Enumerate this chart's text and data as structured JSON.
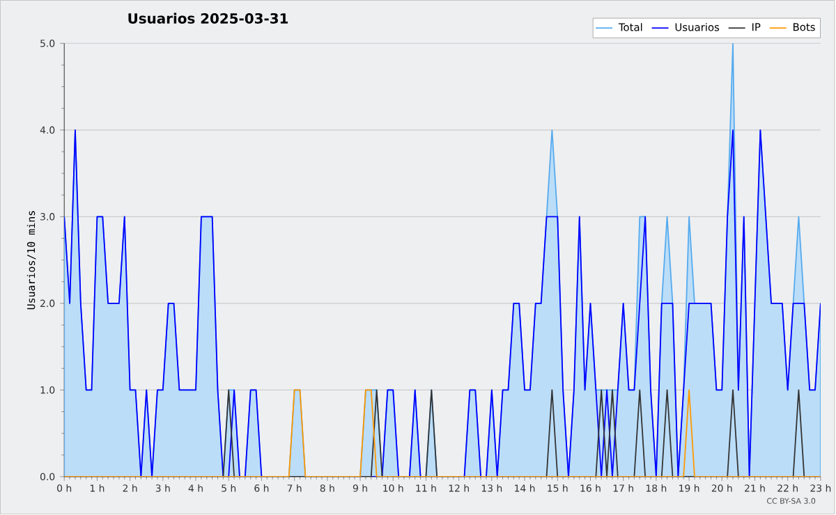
{
  "chart_data": {
    "type": "line",
    "title": "Usuarios  2025-03-31",
    "ylabel": "Usuarios/10 mins",
    "annotations": [
      "CC BY-SA 3.0"
    ],
    "x": [
      0,
      0.167,
      0.333,
      0.5,
      0.667,
      0.833,
      1,
      1.167,
      1.333,
      1.5,
      1.667,
      1.833,
      2,
      2.167,
      2.333,
      2.5,
      2.667,
      2.833,
      3,
      3.167,
      3.333,
      3.5,
      3.667,
      3.833,
      4,
      4.167,
      4.333,
      4.5,
      4.667,
      4.833,
      5,
      5.167,
      5.333,
      5.5,
      5.667,
      5.833,
      6,
      6.167,
      6.333,
      6.5,
      6.667,
      6.833,
      7,
      7.167,
      7.333,
      7.5,
      7.667,
      7.833,
      8,
      8.167,
      8.333,
      8.5,
      8.667,
      8.833,
      9,
      9.167,
      9.333,
      9.5,
      9.667,
      9.833,
      10,
      10.167,
      10.333,
      10.5,
      10.667,
      10.833,
      11,
      11.167,
      11.333,
      11.5,
      11.667,
      11.833,
      12,
      12.167,
      12.333,
      12.5,
      12.667,
      12.833,
      13,
      13.167,
      13.333,
      13.5,
      13.667,
      13.833,
      14,
      14.167,
      14.333,
      14.5,
      14.667,
      14.833,
      15,
      15.167,
      15.333,
      15.5,
      15.667,
      15.833,
      16,
      16.167,
      16.333,
      16.5,
      16.667,
      16.833,
      17,
      17.167,
      17.333,
      17.5,
      17.667,
      17.833,
      18,
      18.167,
      18.333,
      18.5,
      18.667,
      18.833,
      19,
      19.167,
      19.333,
      19.5,
      19.667,
      19.833,
      20,
      20.167,
      20.333,
      20.5,
      20.667,
      20.833,
      21,
      21.167,
      21.333,
      21.5,
      21.667,
      21.833,
      22,
      22.167,
      22.333,
      22.5,
      22.667,
      22.833,
      23
    ],
    "series": [
      {
        "name": "Total",
        "type": "area",
        "color": "#55aaee",
        "values": [
          3,
          2,
          4,
          2,
          1,
          1,
          3,
          3,
          2,
          2,
          2,
          3,
          1,
          1,
          0,
          1,
          0,
          1,
          1,
          2,
          2,
          1,
          1,
          1,
          1,
          3,
          3,
          3,
          1,
          0,
          1,
          1,
          0,
          0,
          1,
          1,
          0,
          0,
          0,
          0,
          0,
          0,
          1,
          1,
          0,
          0,
          0,
          0,
          0,
          0,
          0,
          0,
          0,
          0,
          0,
          1,
          1,
          1,
          0,
          1,
          1,
          0,
          0,
          0,
          1,
          0,
          0,
          1,
          0,
          0,
          0,
          0,
          0,
          0,
          1,
          1,
          0,
          0,
          1,
          0,
          1,
          1,
          2,
          2,
          1,
          1,
          2,
          2,
          3,
          4,
          3,
          1,
          0,
          1,
          3,
          1,
          2,
          1,
          1,
          1,
          1,
          1,
          2,
          1,
          1,
          3,
          3,
          1,
          0,
          2,
          3,
          2,
          0,
          1,
          3,
          2,
          2,
          2,
          2,
          1,
          1,
          3,
          5,
          1,
          3,
          0,
          2,
          4,
          3,
          2,
          2,
          2,
          1,
          2,
          3,
          2,
          1,
          1,
          2
        ]
      },
      {
        "name": "Usuarios",
        "color": "#0000ff",
        "values": [
          3,
          2,
          4,
          2,
          1,
          1,
          3,
          3,
          2,
          2,
          2,
          3,
          1,
          1,
          0,
          1,
          0,
          1,
          1,
          2,
          2,
          1,
          1,
          1,
          1,
          3,
          3,
          3,
          1,
          0,
          0,
          1,
          0,
          0,
          1,
          1,
          0,
          0,
          0,
          0,
          0,
          0,
          0,
          0,
          0,
          0,
          0,
          0,
          0,
          0,
          0,
          0,
          0,
          0,
          0,
          0,
          0,
          0,
          0,
          1,
          1,
          0,
          0,
          0,
          1,
          0,
          0,
          0,
          0,
          0,
          0,
          0,
          0,
          0,
          1,
          1,
          0,
          0,
          1,
          0,
          1,
          1,
          2,
          2,
          1,
          1,
          2,
          2,
          3,
          3,
          3,
          1,
          0,
          1,
          3,
          1,
          2,
          1,
          0,
          1,
          0,
          1,
          2,
          1,
          1,
          2,
          3,
          1,
          0,
          2,
          2,
          2,
          0,
          1,
          2,
          2,
          2,
          2,
          2,
          1,
          1,
          3,
          4,
          1,
          3,
          0,
          2,
          4,
          3,
          2,
          2,
          2,
          1,
          2,
          2,
          2,
          1,
          1,
          2
        ]
      },
      {
        "name": "IP",
        "color": "#333333",
        "values": [
          0,
          0,
          0,
          0,
          0,
          0,
          0,
          0,
          0,
          0,
          0,
          0,
          0,
          0,
          0,
          0,
          0,
          0,
          0,
          0,
          0,
          0,
          0,
          0,
          0,
          0,
          0,
          0,
          0,
          0,
          1,
          0,
          0,
          0,
          0,
          0,
          0,
          0,
          0,
          0,
          0,
          0,
          0,
          0,
          0,
          0,
          0,
          0,
          0,
          0,
          0,
          0,
          0,
          0,
          0,
          0,
          0,
          1,
          0,
          0,
          0,
          0,
          0,
          0,
          0,
          0,
          0,
          1,
          0,
          0,
          0,
          0,
          0,
          0,
          0,
          0,
          0,
          0,
          0,
          0,
          0,
          0,
          0,
          0,
          0,
          0,
          0,
          0,
          0,
          1,
          0,
          0,
          0,
          0,
          0,
          0,
          0,
          0,
          1,
          0,
          1,
          0,
          0,
          0,
          0,
          1,
          0,
          0,
          0,
          0,
          1,
          0,
          0,
          0,
          0,
          0,
          0,
          0,
          0,
          0,
          0,
          0,
          1,
          0,
          0,
          0,
          0,
          0,
          0,
          0,
          0,
          0,
          0,
          0,
          1,
          0,
          0,
          0,
          0
        ]
      },
      {
        "name": "Bots",
        "color": "#ff9900",
        "values": [
          0,
          0,
          0,
          0,
          0,
          0,
          0,
          0,
          0,
          0,
          0,
          0,
          0,
          0,
          0,
          0,
          0,
          0,
          0,
          0,
          0,
          0,
          0,
          0,
          0,
          0,
          0,
          0,
          0,
          0,
          0,
          0,
          0,
          0,
          0,
          0,
          0,
          0,
          0,
          0,
          0,
          0,
          1,
          1,
          0,
          0,
          0,
          0,
          0,
          0,
          0,
          0,
          0,
          0,
          0,
          1,
          1,
          0,
          0,
          0,
          0,
          0,
          0,
          0,
          0,
          0,
          0,
          0,
          0,
          0,
          0,
          0,
          0,
          0,
          0,
          0,
          0,
          0,
          0,
          0,
          0,
          0,
          0,
          0,
          0,
          0,
          0,
          0,
          0,
          0,
          0,
          0,
          0,
          0,
          0,
          0,
          0,
          0,
          0,
          0,
          0,
          0,
          0,
          0,
          0,
          0,
          0,
          0,
          0,
          0,
          0,
          0,
          0,
          0,
          1,
          0,
          0,
          0,
          0,
          0,
          0,
          0,
          0,
          0,
          0,
          0,
          0,
          0,
          0,
          0,
          0,
          0,
          0,
          0,
          0,
          0,
          0,
          0,
          0
        ]
      }
    ],
    "xlim": [
      0,
      23
    ],
    "xticks": [
      {
        "value": 0,
        "label": "0 h"
      },
      {
        "value": 1,
        "label": "1 h"
      },
      {
        "value": 2,
        "label": "2 h"
      },
      {
        "value": 3,
        "label": "3 h"
      },
      {
        "value": 4,
        "label": "4 h"
      },
      {
        "value": 5,
        "label": "5 h"
      },
      {
        "value": 6,
        "label": "6 h"
      },
      {
        "value": 7,
        "label": "7 h"
      },
      {
        "value": 8,
        "label": "8 h"
      },
      {
        "value": 9,
        "label": "9 h"
      },
      {
        "value": 10,
        "label": "10 h"
      },
      {
        "value": 11,
        "label": "11 h"
      },
      {
        "value": 12,
        "label": "12 h"
      },
      {
        "value": 13,
        "label": "13 h"
      },
      {
        "value": 14,
        "label": "14 h"
      },
      {
        "value": 15,
        "label": "15 h"
      },
      {
        "value": 16,
        "label": "16 h"
      },
      {
        "value": 17,
        "label": "17 h"
      },
      {
        "value": 18,
        "label": "18 h"
      },
      {
        "value": 19,
        "label": "19 h"
      },
      {
        "value": 20,
        "label": "20 h"
      },
      {
        "value": 21,
        "label": "21 h"
      },
      {
        "value": 22,
        "label": "22 h"
      },
      {
        "value": 23,
        "label": "23 h"
      }
    ],
    "ylim": [
      0,
      5
    ],
    "yticks": [
      {
        "value": 0,
        "label": "0.0"
      },
      {
        "value": 1,
        "label": "1.0"
      },
      {
        "value": 2,
        "label": "2.0"
      },
      {
        "value": 3,
        "label": "3.0"
      },
      {
        "value": 4,
        "label": "4.0"
      },
      {
        "value": 5,
        "label": "5.0"
      }
    ],
    "grid": "y",
    "legend": "top right"
  }
}
